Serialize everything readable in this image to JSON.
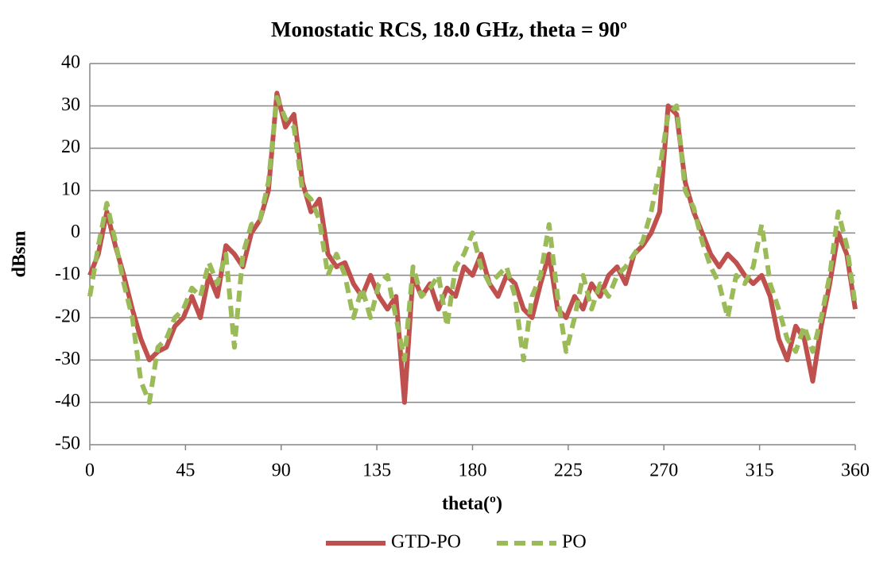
{
  "chart_data": {
    "type": "line",
    "title": "Monostatic RCS, 18.0 GHz, theta = 90º",
    "x_label": "theta(º)",
    "y_label": "dBsm",
    "x": [
      0,
      4,
      8,
      12,
      16,
      20,
      24,
      28,
      32,
      36,
      40,
      44,
      48,
      52,
      56,
      60,
      64,
      68,
      72,
      76,
      80,
      84,
      88,
      92,
      96,
      100,
      104,
      108,
      112,
      116,
      120,
      124,
      128,
      132,
      136,
      140,
      144,
      148,
      152,
      156,
      160,
      164,
      168,
      172,
      176,
      180,
      184,
      188,
      192,
      196,
      200,
      204,
      208,
      212,
      216,
      220,
      224,
      228,
      232,
      236,
      240,
      244,
      248,
      252,
      256,
      260,
      264,
      268,
      272,
      276,
      280,
      284,
      288,
      292,
      296,
      300,
      304,
      308,
      312,
      316,
      320,
      324,
      328,
      332,
      336,
      340,
      344,
      348,
      352,
      356,
      360
    ],
    "series": [
      {
        "name": "GTD-PO",
        "color": "#c0504d",
        "line_style": "solid",
        "values": [
          -10,
          -5,
          5,
          -3,
          -10,
          -18,
          -25,
          -30,
          -28,
          -27,
          -22,
          -20,
          -15,
          -20,
          -10,
          -15,
          -3,
          -5,
          -8,
          0,
          3,
          10,
          33,
          25,
          28,
          12,
          5,
          8,
          -5,
          -8,
          -7,
          -12,
          -15,
          -10,
          -15,
          -18,
          -15,
          -40,
          -10,
          -15,
          -12,
          -18,
          -13,
          -15,
          -8,
          -10,
          -5,
          -12,
          -15,
          -10,
          -12,
          -18,
          -20,
          -12,
          -5,
          -18,
          -20,
          -15,
          -18,
          -12,
          -15,
          -10,
          -8,
          -12,
          -5,
          -3,
          0,
          5,
          30,
          28,
          12,
          5,
          0,
          -5,
          -8,
          -5,
          -7,
          -10,
          -12,
          -10,
          -15,
          -25,
          -30,
          -22,
          -25,
          -35,
          -22,
          -12,
          0,
          -5,
          -18
        ]
      },
      {
        "name": "PO",
        "color": "#9bbb59",
        "line_style": "dashed",
        "values": [
          -15,
          -3,
          7,
          -2,
          -12,
          -20,
          -35,
          -40,
          -27,
          -25,
          -20,
          -18,
          -13,
          -15,
          -7,
          -12,
          -5,
          -27,
          -5,
          2,
          3,
          12,
          32,
          27,
          25,
          10,
          8,
          3,
          -10,
          -5,
          -10,
          -20,
          -13,
          -20,
          -12,
          -10,
          -20,
          -30,
          -8,
          -15,
          -13,
          -10,
          -22,
          -8,
          -5,
          0,
          -8,
          -12,
          -10,
          -8,
          -15,
          -30,
          -15,
          -10,
          2,
          -15,
          -28,
          -20,
          -10,
          -18,
          -12,
          -15,
          -10,
          -8,
          -5,
          -2,
          5,
          15,
          28,
          30,
          10,
          6,
          -2,
          -8,
          -12,
          -20,
          -10,
          -12,
          -8,
          2,
          -12,
          -18,
          -25,
          -28,
          -22,
          -28,
          -20,
          -10,
          5,
          -3,
          -17
        ]
      }
    ],
    "xlim": [
      0,
      360
    ],
    "xticks": [
      0,
      45,
      90,
      135,
      180,
      225,
      270,
      315,
      360
    ],
    "ylim": [
      -50,
      40
    ],
    "yticks": [
      -50,
      -40,
      -30,
      -20,
      -10,
      0,
      10,
      20,
      30,
      40
    ],
    "grid": true,
    "legend": "bottom"
  }
}
